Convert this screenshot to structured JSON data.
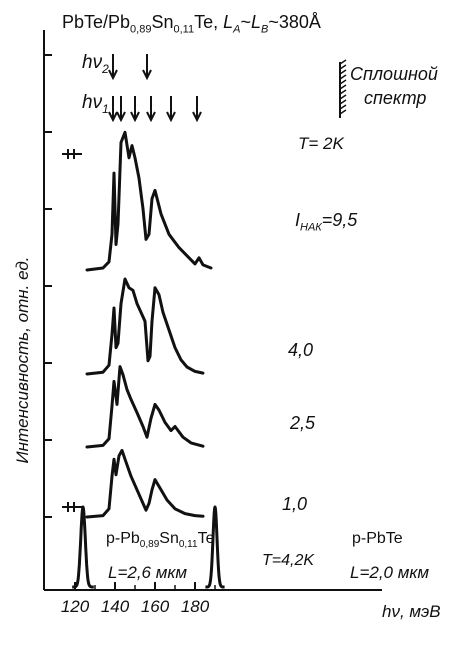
{
  "header": {
    "system": "PbTe/Pb",
    "sub1": "0,89",
    "mid": "Sn",
    "sub2": "0,11",
    "tail": "Te,",
    "period": "L",
    "pA": "A",
    "sim1": "~",
    "pB": "B",
    "sim2": "~380",
    "unit": "Å"
  },
  "pump": {
    "hv2": "hν",
    "hv2_sub": "2",
    "hv1": "hν",
    "hv1_sub": "1",
    "continuum_1": "Сплошной",
    "continuum_2": "спектр",
    "hv2_arrow_energies": [
      139,
      156
    ],
    "hv1_arrow_energies": [
      139,
      143,
      150,
      158,
      168,
      181
    ]
  },
  "temp_top": "T= 2K",
  "ylabel": "Интенсивность, отн. ед.",
  "current_label_prefix": "I",
  "current_label_sub": "НАК",
  "reference": {
    "left_name": "p-Pb",
    "left_sub1": "0,89",
    "left_mid": "Sn",
    "left_sub2": "0,11",
    "left_tail": "Te",
    "left_L": "L=2,6 мкм",
    "temp": "T=4,2K",
    "right_name": "p-PbTe",
    "right_L": "L=2,0 мкм"
  },
  "xlabel": "hν, мэВ",
  "chart_data": {
    "type": "line",
    "x_unit": "meV",
    "xlim": [
      114,
      192
    ],
    "x_ticks": [
      120,
      140,
      160,
      180
    ],
    "y_axis": "relative intensity, curves offset vertically",
    "series": [
      {
        "name": "9,5",
        "x": [
          126,
          134,
          137,
          138.5,
          139.5,
          140.5,
          141.5,
          143,
          145,
          147,
          148.5,
          150,
          152,
          154,
          155.5,
          157,
          158.5,
          160,
          163,
          167,
          172,
          177,
          180,
          182,
          184,
          188
        ],
        "y": [
          0,
          0.02,
          0.08,
          0.35,
          0.95,
          0.25,
          0.45,
          1.25,
          1.35,
          1.1,
          1.22,
          1.1,
          0.9,
          0.6,
          0.3,
          0.35,
          0.7,
          0.78,
          0.55,
          0.35,
          0.22,
          0.12,
          0.06,
          0.12,
          0.05,
          0.02
        ]
      },
      {
        "name": "4,0",
        "x": [
          126,
          134,
          137,
          138.5,
          139.5,
          140.5,
          141.5,
          143,
          145,
          147,
          149,
          151,
          153,
          155,
          156.5,
          157.5,
          158.5,
          160,
          162,
          164,
          167,
          170,
          173,
          176,
          180,
          184
        ],
        "y": [
          0,
          0.02,
          0.1,
          0.45,
          0.75,
          0.3,
          0.35,
          0.8,
          1.08,
          0.98,
          0.95,
          0.8,
          0.7,
          0.6,
          0.15,
          0.2,
          0.6,
          0.98,
          0.9,
          0.7,
          0.5,
          0.3,
          0.16,
          0.08,
          0.03,
          0.01
        ]
      },
      {
        "name": "2,5",
        "x": [
          126,
          134,
          137,
          138.5,
          139.5,
          141,
          142.5,
          144,
          146,
          148,
          151,
          154,
          156,
          158,
          160,
          162,
          165,
          168,
          170,
          174,
          178,
          184
        ],
        "y": [
          0,
          0.02,
          0.1,
          0.5,
          0.8,
          0.52,
          0.98,
          0.88,
          0.7,
          0.58,
          0.42,
          0.25,
          0.12,
          0.35,
          0.52,
          0.45,
          0.3,
          0.2,
          0.25,
          0.12,
          0.05,
          0.01
        ]
      },
      {
        "name": "1,0",
        "x": [
          126,
          134,
          137,
          138.5,
          139.5,
          140.5,
          142,
          143.5,
          145,
          148,
          151,
          154,
          155.5,
          157,
          158.5,
          160,
          163,
          166,
          170,
          175,
          180,
          184
        ],
        "y": [
          0,
          0.02,
          0.12,
          0.6,
          0.85,
          0.62,
          0.9,
          0.98,
          0.85,
          0.6,
          0.4,
          0.2,
          0.1,
          0.2,
          0.4,
          0.55,
          0.4,
          0.25,
          0.12,
          0.05,
          0.02,
          0.01
        ]
      }
    ],
    "reference_peaks": [
      {
        "name": "p-Pb0,89Sn0,11Te",
        "center": 124,
        "width": 1.8
      },
      {
        "name": "p-PbTe",
        "center": 190,
        "width": 1.6
      }
    ]
  }
}
